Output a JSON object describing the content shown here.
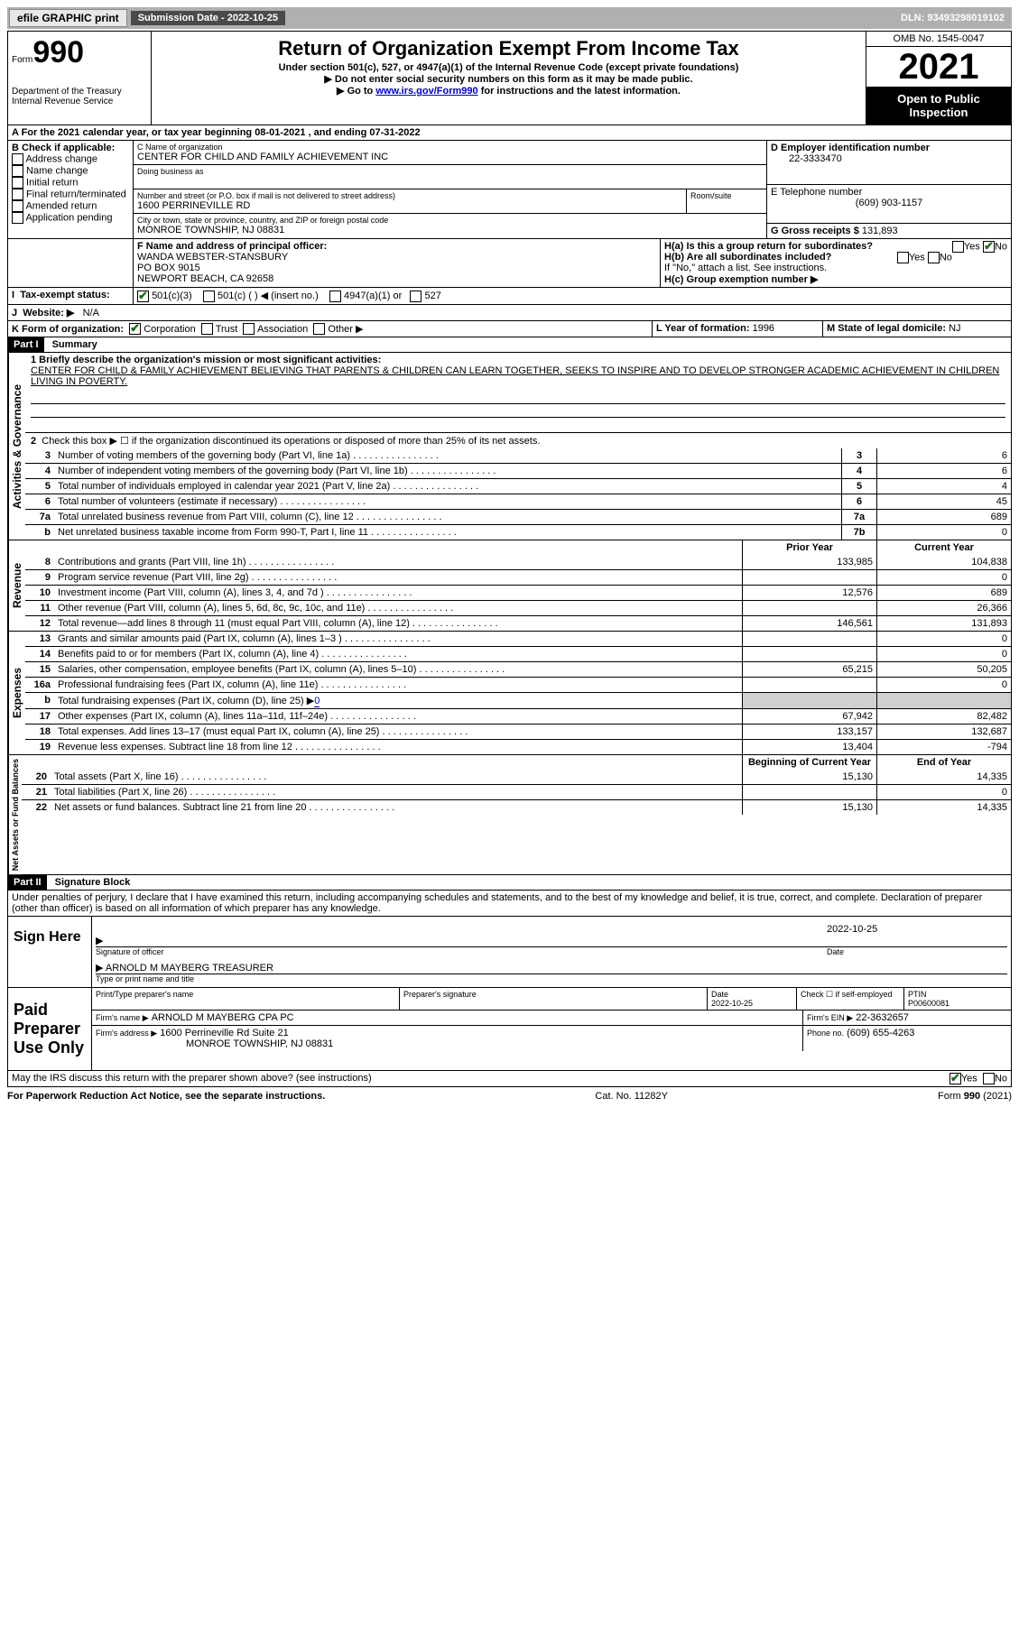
{
  "topbar": {
    "efile": "efile GRAPHIC print",
    "submission_label": "Submission Date - 2022-10-25",
    "dln": "DLN: 93493298019102"
  },
  "header": {
    "form_word": "Form",
    "form_num": "990",
    "dept": "Department of the Treasury",
    "irs": "Internal Revenue Service",
    "title": "Return of Organization Exempt From Income Tax",
    "subtitle": "Under section 501(c), 527, or 4947(a)(1) of the Internal Revenue Code (except private foundations)",
    "note1": "▶ Do not enter social security numbers on this form as it may be made public.",
    "note2_pre": "▶ Go to ",
    "note2_link": "www.irs.gov/Form990",
    "note2_post": " for instructions and the latest information.",
    "omb": "OMB No. 1545-0047",
    "year": "2021",
    "open": "Open to Public Inspection"
  },
  "period": {
    "text": "A For the 2021 calendar year, or tax year beginning 08-01-2021   , and ending 07-31-2022"
  },
  "boxB": {
    "label": "B Check if applicable:",
    "items": [
      "Address change",
      "Name change",
      "Initial return",
      "Final return/terminated",
      "Amended return",
      "Application pending"
    ]
  },
  "boxC": {
    "name_label": "C Name of organization",
    "name": "CENTER FOR CHILD AND FAMILY ACHIEVEMENT INC",
    "dba_label": "Doing business as",
    "street_label": "Number and street (or P.O. box if mail is not delivered to street address)",
    "room_label": "Room/suite",
    "street": "1600 PERRINEVILLE RD",
    "city_label": "City or town, state or province, country, and ZIP or foreign postal code",
    "city": "MONROE TOWNSHIP, NJ  08831"
  },
  "boxD": {
    "label": "D Employer identification number",
    "val": "22-3333470"
  },
  "boxE": {
    "label": "E Telephone number",
    "val": "(609) 903-1157"
  },
  "boxG": {
    "label": "G Gross receipts $",
    "val": "131,893"
  },
  "boxF": {
    "label": "F Name and address of principal officer:",
    "name": "WANDA WEBSTER-STANSBURY",
    "addr1": "PO BOX 9015",
    "addr2": "NEWPORT BEACH, CA  92658"
  },
  "boxH": {
    "a": "H(a)  Is this a group return for subordinates?",
    "b": "H(b)  Are all subordinates included?",
    "b_note": "If \"No,\" attach a list. See instructions.",
    "c": "H(c)  Group exemption number ▶",
    "yes": "Yes",
    "no": "No"
  },
  "boxI": {
    "label": "Tax-exempt status:",
    "opts": [
      "501(c)(3)",
      "501(c) (  ) ◀ (insert no.)",
      "4947(a)(1) or",
      "527"
    ]
  },
  "boxJ": {
    "label": "Website: ▶",
    "val": "N/A"
  },
  "boxK": {
    "label": "K Form of organization:",
    "opts": [
      "Corporation",
      "Trust",
      "Association",
      "Other ▶"
    ]
  },
  "boxL": {
    "label": "L Year of formation:",
    "val": "1996"
  },
  "boxM": {
    "label": "M State of legal domicile:",
    "val": "NJ"
  },
  "partI": {
    "hdr": "Part I",
    "title": "Summary",
    "mission_label": "1  Briefly describe the organization's mission or most significant activities:",
    "mission": "CENTER FOR CHILD & FAMILY ACHIEVEMENT BELIEVING THAT PARENTS & CHILDREN CAN LEARN TOGETHER, SEEKS TO INSPIRE AND TO DEVELOP STRONGER ACADEMIC ACHIEVEMENT IN CHILDREN LIVING IN POVERTY.",
    "line2": "Check this box ▶ ☐  if the organization discontinued its operations or disposed of more than 25% of its net assets.",
    "gov": [
      {
        "n": "3",
        "t": "Number of voting members of the governing body (Part VI, line 1a)",
        "b": "3",
        "v": "6"
      },
      {
        "n": "4",
        "t": "Number of independent voting members of the governing body (Part VI, line 1b)",
        "b": "4",
        "v": "6"
      },
      {
        "n": "5",
        "t": "Total number of individuals employed in calendar year 2021 (Part V, line 2a)",
        "b": "5",
        "v": "4"
      },
      {
        "n": "6",
        "t": "Total number of volunteers (estimate if necessary)",
        "b": "6",
        "v": "45"
      },
      {
        "n": "7a",
        "t": "Total unrelated business revenue from Part VIII, column (C), line 12",
        "b": "7a",
        "v": "689"
      },
      {
        "n": "b",
        "t": "Net unrelated business taxable income from Form 990-T, Part I, line 11",
        "b": "7b",
        "v": "0"
      }
    ],
    "col_prior": "Prior Year",
    "col_curr": "Current Year",
    "rev": [
      {
        "n": "8",
        "t": "Contributions and grants (Part VIII, line 1h)",
        "p": "133,985",
        "c": "104,838"
      },
      {
        "n": "9",
        "t": "Program service revenue (Part VIII, line 2g)",
        "p": "",
        "c": "0"
      },
      {
        "n": "10",
        "t": "Investment income (Part VIII, column (A), lines 3, 4, and 7d )",
        "p": "12,576",
        "c": "689"
      },
      {
        "n": "11",
        "t": "Other revenue (Part VIII, column (A), lines 5, 6d, 8c, 9c, 10c, and 11e)",
        "p": "",
        "c": "26,366"
      },
      {
        "n": "12",
        "t": "Total revenue—add lines 8 through 11 (must equal Part VIII, column (A), line 12)",
        "p": "146,561",
        "c": "131,893"
      }
    ],
    "exp": [
      {
        "n": "13",
        "t": "Grants and similar amounts paid (Part IX, column (A), lines 1–3 )",
        "p": "",
        "c": "0"
      },
      {
        "n": "14",
        "t": "Benefits paid to or for members (Part IX, column (A), line 4)",
        "p": "",
        "c": "0"
      },
      {
        "n": "15",
        "t": "Salaries, other compensation, employee benefits (Part IX, column (A), lines 5–10)",
        "p": "65,215",
        "c": "50,205"
      },
      {
        "n": "16a",
        "t": "Professional fundraising fees (Part IX, column (A), line 11e)",
        "p": "",
        "c": "0"
      },
      {
        "n": "b",
        "t": "Total fundraising expenses (Part IX, column (D), line 25) ▶0",
        "p": "shade",
        "c": "shade"
      },
      {
        "n": "17",
        "t": "Other expenses (Part IX, column (A), lines 11a–11d, 11f–24e)",
        "p": "67,942",
        "c": "82,482"
      },
      {
        "n": "18",
        "t": "Total expenses. Add lines 13–17 (must equal Part IX, column (A), line 25)",
        "p": "133,157",
        "c": "132,687"
      },
      {
        "n": "19",
        "t": "Revenue less expenses. Subtract line 18 from line 12",
        "p": "13,404",
        "c": "-794"
      }
    ],
    "col_beg": "Beginning of Current Year",
    "col_end": "End of Year",
    "net": [
      {
        "n": "20",
        "t": "Total assets (Part X, line 16)",
        "p": "15,130",
        "c": "14,335"
      },
      {
        "n": "21",
        "t": "Total liabilities (Part X, line 26)",
        "p": "",
        "c": "0"
      },
      {
        "n": "22",
        "t": "Net assets or fund balances. Subtract line 21 from line 20",
        "p": "15,130",
        "c": "14,335"
      }
    ],
    "vlab_gov": "Activities & Governance",
    "vlab_rev": "Revenue",
    "vlab_exp": "Expenses",
    "vlab_net": "Net Assets or Fund Balances"
  },
  "partII": {
    "hdr": "Part II",
    "title": "Signature Block",
    "decl": "Under penalties of perjury, I declare that I have examined this return, including accompanying schedules and statements, and to the best of my knowledge and belief, it is true, correct, and complete. Declaration of preparer (other than officer) is based on all information of which preparer has any knowledge.",
    "sign_here": "Sign Here",
    "sig_officer": "Signature of officer",
    "sig_date": "2022-10-25",
    "date_label": "Date",
    "officer_name": "ARNOLD M MAYBERG  TREASURER",
    "type_name": "Type or print name and title",
    "paid": "Paid Preparer Use Only",
    "prep_name_label": "Print/Type preparer's name",
    "prep_sig_label": "Preparer's signature",
    "prep_date_label": "Date",
    "prep_date": "2022-10-25",
    "check_self": "Check ☐ if self-employed",
    "ptin_label": "PTIN",
    "ptin": "P00600081",
    "firm_name_label": "Firm's name    ▶",
    "firm_name": "ARNOLD M MAYBERG CPA PC",
    "firm_ein_label": "Firm's EIN ▶",
    "firm_ein": "22-3632657",
    "firm_addr_label": "Firm's address ▶",
    "firm_addr1": "1600 Perrineville Rd Suite 21",
    "firm_addr2": "MONROE TOWNSHIP, NJ  08831",
    "phone_label": "Phone no.",
    "phone": "(609) 655-4263",
    "discuss": "May the IRS discuss this return with the preparer shown above? (see instructions)"
  },
  "footer": {
    "pra": "For Paperwork Reduction Act Notice, see the separate instructions.",
    "cat": "Cat. No. 11282Y",
    "form": "Form 990 (2021)"
  }
}
